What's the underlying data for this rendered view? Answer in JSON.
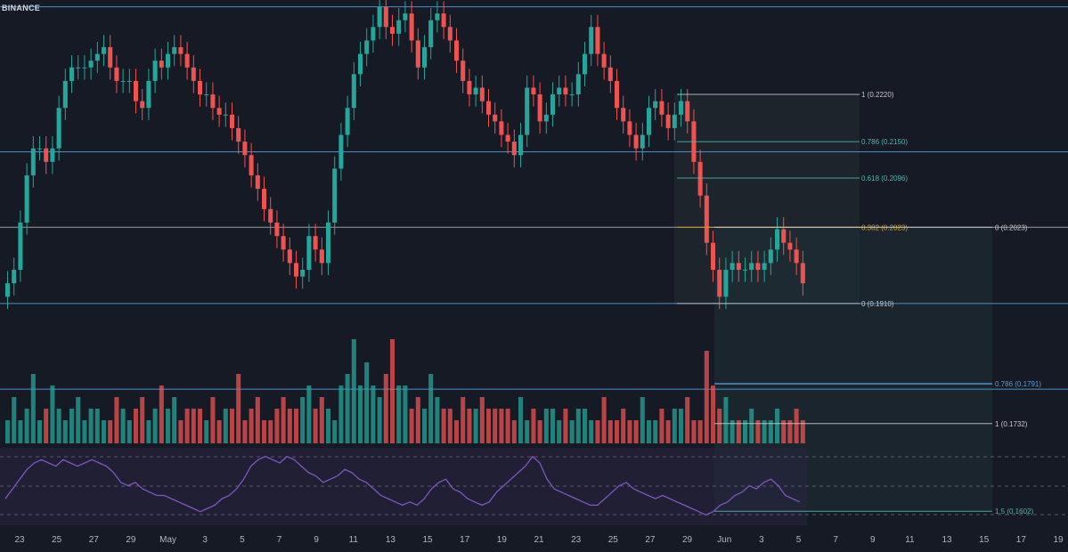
{
  "exchange_label": "BINANCE",
  "colors": {
    "background": "#161a25",
    "up": "#26a69a",
    "down": "#ef5350",
    "hline_blue": "#4a90c8",
    "fib_white": "#c8c8c8",
    "fib_teal": "#4db6ac",
    "fib_gold": "#d4a017",
    "rsi": "#7e57c2"
  },
  "chart_data": {
    "type": "candlestick",
    "title": "",
    "xlabel": "",
    "ylabel": "",
    "x_tick_labels": [
      "23",
      "25",
      "27",
      "29",
      "May",
      "3",
      "5",
      "7",
      "9",
      "11",
      "13",
      "15",
      "17",
      "19",
      "21",
      "23",
      "25",
      "27",
      "29",
      "Jun",
      "3",
      "5",
      "7",
      "9",
      "11",
      "13",
      "15",
      "17",
      "19"
    ],
    "ylim": [
      0.17,
      0.236
    ],
    "closes": [
      0.194,
      0.196,
      0.203,
      0.21,
      0.214,
      0.214,
      0.212,
      0.214,
      0.22,
      0.224,
      0.226,
      0.226,
      0.226,
      0.227,
      0.228,
      0.229,
      0.226,
      0.224,
      0.224,
      0.224,
      0.221,
      0.22,
      0.224,
      0.227,
      0.226,
      0.228,
      0.229,
      0.228,
      0.226,
      0.224,
      0.222,
      0.222,
      0.22,
      0.219,
      0.219,
      0.217,
      0.215,
      0.213,
      0.21,
      0.208,
      0.205,
      0.203,
      0.201,
      0.199,
      0.197,
      0.195,
      0.196,
      0.201,
      0.199,
      0.197,
      0.203,
      0.211,
      0.216,
      0.22,
      0.225,
      0.228,
      0.23,
      0.232,
      0.235,
      0.232,
      0.231,
      0.233,
      0.234,
      0.23,
      0.226,
      0.229,
      0.233,
      0.234,
      0.232,
      0.23,
      0.227,
      0.224,
      0.222,
      0.223,
      0.221,
      0.219,
      0.218,
      0.216,
      0.215,
      0.213,
      0.216,
      0.223,
      0.222,
      0.218,
      0.219,
      0.222,
      0.223,
      0.222,
      0.222,
      0.225,
      0.228,
      0.232,
      0.228,
      0.226,
      0.224,
      0.22,
      0.218,
      0.216,
      0.214,
      0.216,
      0.22,
      0.221,
      0.219,
      0.217,
      0.219,
      0.221,
      0.218,
      0.212,
      0.207,
      0.2,
      0.196,
      0.192,
      0.196,
      0.197,
      0.196,
      0.196,
      0.197,
      0.196,
      0.197,
      0.199,
      0.202,
      0.2,
      0.199,
      0.197,
      0.194
    ],
    "volume_relative": [
      0.2,
      0.4,
      0.2,
      0.3,
      0.6,
      0.2,
      0.3,
      0.5,
      0.3,
      0.2,
      0.3,
      0.4,
      0.2,
      0.3,
      0.3,
      0.2,
      0.2,
      0.4,
      0.3,
      0.2,
      0.3,
      0.4,
      0.2,
      0.3,
      0.5,
      0.3,
      0.4,
      0.2,
      0.3,
      0.3,
      0.3,
      0.2,
      0.4,
      0.2,
      0.3,
      0.3,
      0.6,
      0.2,
      0.3,
      0.4,
      0.2,
      0.2,
      0.3,
      0.4,
      0.3,
      0.3,
      0.4,
      0.5,
      0.3,
      0.4,
      0.3,
      0.2,
      0.5,
      0.6,
      0.9,
      0.5,
      0.7,
      0.5,
      0.4,
      0.6,
      0.9,
      0.5,
      0.5,
      0.3,
      0.4,
      0.3,
      0.6,
      0.4,
      0.3,
      0.3,
      0.2,
      0.4,
      0.3,
      0.3,
      0.4,
      0.3,
      0.3,
      0.3,
      0.3,
      0.2,
      0.4,
      0.2,
      0.3,
      0.2,
      0.3,
      0.3,
      0.2,
      0.3,
      0.2,
      0.3,
      0.3,
      0.2,
      0.2,
      0.4,
      0.2,
      0.2,
      0.3,
      0.2,
      0.2,
      0.4,
      0.2,
      0.2,
      0.3,
      0.2,
      0.3,
      0.3,
      0.4,
      0.2,
      0.2,
      0.8,
      0.5,
      0.3,
      0.4,
      0.2,
      0.2,
      0.2,
      0.3,
      0.2,
      0.2,
      0.2,
      0.3,
      0.2,
      0.2,
      0.3,
      0.2
    ],
    "rsi_relative": [
      0.3,
      0.45,
      0.6,
      0.75,
      0.85,
      0.9,
      0.85,
      0.8,
      0.9,
      0.85,
      0.8,
      0.85,
      0.9,
      0.85,
      0.8,
      0.7,
      0.55,
      0.5,
      0.55,
      0.45,
      0.4,
      0.35,
      0.35,
      0.3,
      0.25,
      0.2,
      0.15,
      0.1,
      0.15,
      0.2,
      0.3,
      0.35,
      0.45,
      0.6,
      0.8,
      0.9,
      0.95,
      0.9,
      0.85,
      0.95,
      0.9,
      0.8,
      0.7,
      0.65,
      0.55,
      0.6,
      0.65,
      0.75,
      0.7,
      0.6,
      0.55,
      0.45,
      0.35,
      0.3,
      0.25,
      0.2,
      0.25,
      0.2,
      0.3,
      0.45,
      0.55,
      0.6,
      0.45,
      0.4,
      0.3,
      0.25,
      0.2,
      0.25,
      0.4,
      0.5,
      0.6,
      0.7,
      0.8,
      0.95,
      0.85,
      0.6,
      0.45,
      0.4,
      0.35,
      0.3,
      0.25,
      0.2,
      0.2,
      0.3,
      0.4,
      0.5,
      0.55,
      0.45,
      0.4,
      0.35,
      0.3,
      0.35,
      0.3,
      0.25,
      0.2,
      0.15,
      0.1,
      0.05,
      0.1,
      0.2,
      0.25,
      0.35,
      0.4,
      0.5,
      0.45,
      0.55,
      0.6,
      0.5,
      0.35,
      0.3,
      0.25
    ]
  },
  "horizontal_lines": [
    {
      "name": "top-line",
      "price": 0.235
    },
    {
      "name": "upper-line",
      "price": 0.2135
    },
    {
      "name": "mid-line",
      "price": 0.2023
    },
    {
      "name": "lower-line",
      "price": 0.191
    },
    {
      "name": "bottom-line",
      "price": 0.1783
    }
  ],
  "fib_retracement": [
    {
      "label": "1 (0.2220)",
      "price": 0.222,
      "color": "#c8c8c8"
    },
    {
      "label": "0.786 (0.2150)",
      "price": 0.215,
      "color": "#4db6ac"
    },
    {
      "label": "0.618 (0.2096)",
      "price": 0.2096,
      "color": "#4db6ac"
    },
    {
      "label": "0.382 (0.2023)",
      "price": 0.2023,
      "color": "#d4a017"
    },
    {
      "label": "0 (0.1910)",
      "price": 0.191,
      "color": "#c8c8c8"
    }
  ],
  "fib_extension": [
    {
      "label": "0 (0.2023)",
      "price": 0.2023,
      "color": "#c8c8c8"
    },
    {
      "label": "0.786 (0.1791)",
      "price": 0.1791,
      "color": "#5c9bd6"
    },
    {
      "label": "1 (0.1732)",
      "price": 0.1732,
      "color": "#c8c8c8"
    },
    {
      "label": "1.5 (0.1602)",
      "price": 0.1602,
      "color": "#4db6ac"
    }
  ]
}
